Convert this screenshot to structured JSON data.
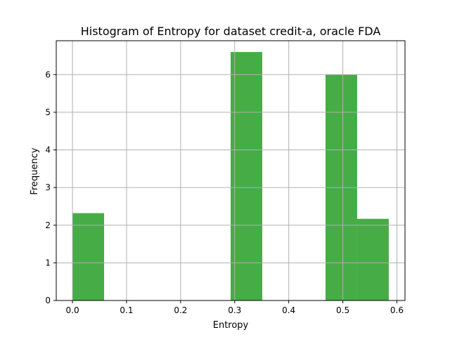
{
  "chart_data": {
    "type": "bar",
    "title": "Histogram of Entropy for dataset credit-a, oracle FDA",
    "xlabel": "Entropy",
    "ylabel": "Frequency",
    "xlim": [
      -0.03,
      0.615
    ],
    "ylim": [
      0,
      6.9
    ],
    "xticks": [
      0.0,
      0.1,
      0.2,
      0.3,
      0.4,
      0.5,
      0.6
    ],
    "xtick_labels": [
      "0.0",
      "0.1",
      "0.2",
      "0.3",
      "0.4",
      "0.5",
      "0.6"
    ],
    "yticks": [
      0,
      1,
      2,
      3,
      4,
      5,
      6
    ],
    "ytick_labels": [
      "0",
      "1",
      "2",
      "3",
      "4",
      "5",
      "6"
    ],
    "grid": true,
    "bar_color": "#2ca02c",
    "bins": [
      {
        "start": 0.0,
        "end": 0.0585,
        "value": 2.32
      },
      {
        "start": 0.0585,
        "end": 0.117,
        "value": 0
      },
      {
        "start": 0.117,
        "end": 0.1755,
        "value": 0
      },
      {
        "start": 0.1755,
        "end": 0.234,
        "value": 0
      },
      {
        "start": 0.234,
        "end": 0.2925,
        "value": 0
      },
      {
        "start": 0.2925,
        "end": 0.351,
        "value": 6.6
      },
      {
        "start": 0.351,
        "end": 0.4095,
        "value": 0
      },
      {
        "start": 0.4095,
        "end": 0.468,
        "value": 0
      },
      {
        "start": 0.468,
        "end": 0.5265,
        "value": 6.0
      },
      {
        "start": 0.5265,
        "end": 0.585,
        "value": 2.17
      }
    ]
  }
}
